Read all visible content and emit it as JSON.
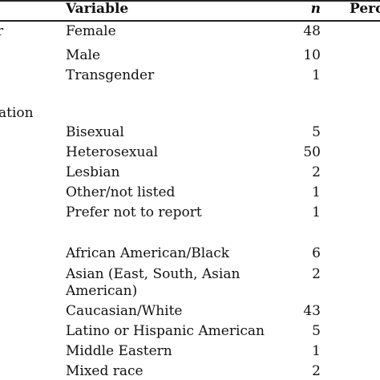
{
  "header": {
    "category": "",
    "variable": "Variable",
    "n": "n",
    "percent": "Perc"
  },
  "groups": [
    {
      "label": "r",
      "rows": [
        {
          "variable": "Female",
          "n": "48"
        },
        {
          "variable": "Male",
          "n": "10"
        },
        {
          "variable": "Transgender",
          "n": "1"
        }
      ]
    },
    {
      "label": "ation",
      "rows": [
        {
          "variable": "Bisexual",
          "n": "5"
        },
        {
          "variable": "Heterosexual",
          "n": "50"
        },
        {
          "variable": "Lesbian",
          "n": "2"
        },
        {
          "variable": "Other/not listed",
          "n": "1"
        },
        {
          "variable": "Prefer not to report",
          "n": "1"
        }
      ]
    },
    {
      "label": "",
      "rows": [
        {
          "variable": "African American/Black",
          "n": "6"
        },
        {
          "variable": "Asian (East, South, Asian",
          "variable_line2": "American)",
          "n": "2"
        },
        {
          "variable": "Caucasian/White",
          "n": "43"
        },
        {
          "variable": "Latino or Hispanic American",
          "n": "5"
        },
        {
          "variable": "Middle Eastern",
          "n": "1"
        },
        {
          "variable": "Mixed race",
          "n": "2"
        }
      ]
    }
  ]
}
